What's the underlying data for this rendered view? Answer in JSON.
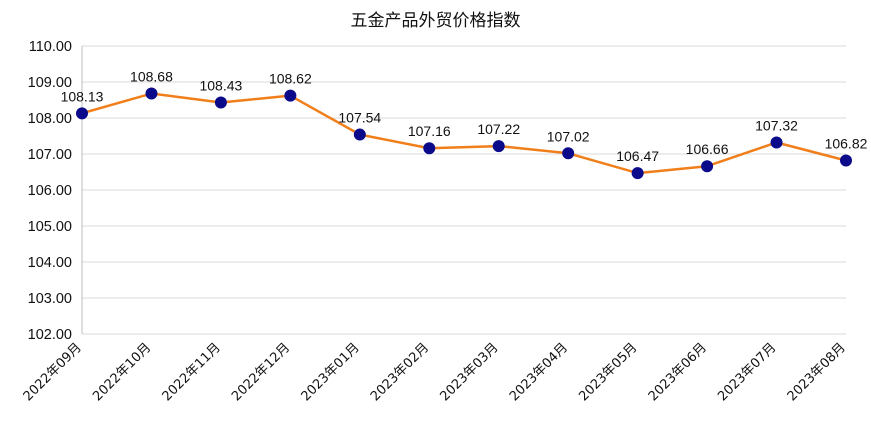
{
  "chart_data": {
    "type": "line",
    "title": "五金产品外贸价格指数",
    "xlabel": "",
    "ylabel": "",
    "categories": [
      "2022年09月",
      "2022年10月",
      "2022年11月",
      "2022年12月",
      "2023年01月",
      "2023年02月",
      "2023年03月",
      "2023年04月",
      "2023年05月",
      "2023年06月",
      "2023年07月",
      "2023年08月"
    ],
    "series": [
      {
        "values": [
          108.13,
          108.68,
          108.43,
          108.62,
          107.54,
          107.16,
          107.22,
          107.02,
          106.47,
          106.66,
          107.32,
          106.82
        ]
      }
    ],
    "ylim": [
      102,
      110
    ],
    "yticks": [
      "102.00",
      "103.00",
      "104.00",
      "105.00",
      "106.00",
      "107.00",
      "108.00",
      "109.00",
      "110.00"
    ],
    "grid": true,
    "legend": "none",
    "colors": {
      "line": "#F07F1B",
      "marker": "#0A0A8A",
      "grid": "#D9D9D9",
      "axis": "#BFBFBF"
    }
  }
}
